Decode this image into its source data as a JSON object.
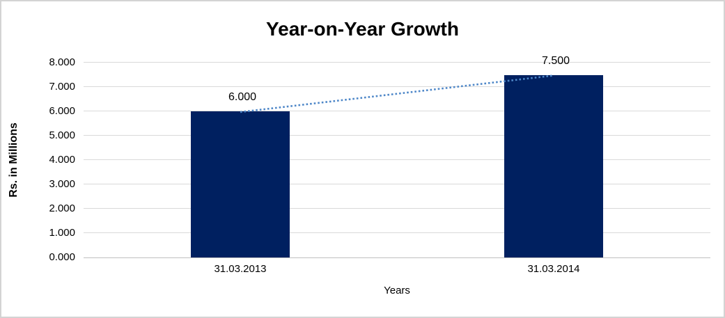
{
  "title": "Year-on-Year Growth",
  "chart_data": {
    "type": "bar",
    "title": "Year-on-Year Growth",
    "categories": [
      "31.03.2013",
      "31.03.2014"
    ],
    "values": [
      6.0,
      7.5
    ],
    "value_labels": [
      "6.000",
      "7.500"
    ],
    "xlabel": "Years",
    "ylabel": "Rs. in Millions",
    "ylim": [
      0,
      8
    ],
    "ytick_step": 1,
    "ytick_labels": [
      "0.000",
      "1.000",
      "2.000",
      "3.000",
      "4.000",
      "5.000",
      "6.000",
      "7.000",
      "8.000"
    ],
    "grid": true,
    "legend": "none",
    "trendline": {
      "type": "linear",
      "style": "dotted",
      "connects": [
        "6.000",
        "7.500"
      ]
    }
  },
  "colors": {
    "bar": "#002060",
    "trendline": "#4e87c8",
    "gridline": "#d9d9d9",
    "axis_line": "#bfbfbf",
    "text": "#000000",
    "border": "#d3d3d3",
    "background": "#ffffff"
  }
}
